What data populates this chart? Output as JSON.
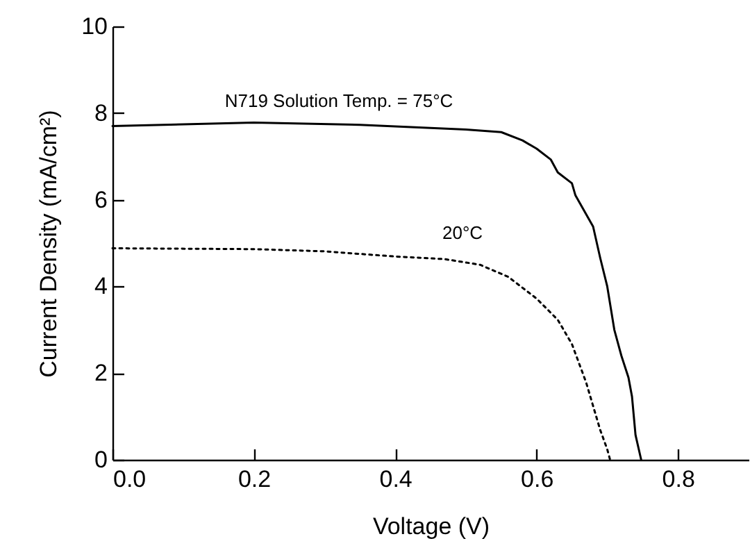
{
  "chart_data": {
    "type": "line",
    "xlabel": "Voltage (V)",
    "ylabel": "Current Density (mA/cm²)",
    "xlim": [
      0,
      0.9
    ],
    "xticks": [
      {
        "value": 0,
        "label": "0.0"
      },
      0.2,
      0.4,
      0.6,
      0.8
    ],
    "ylim": [
      0,
      10
    ],
    "yticks": [
      0,
      2,
      4,
      6,
      8,
      10
    ],
    "grid": false,
    "series": [
      {
        "color": "#000000",
        "line_style": "solid",
        "x": [
          0,
          0.2,
          0.35,
          0.5,
          0.55,
          0.58,
          0.6,
          0.62,
          0.63,
          0.65,
          0.655,
          0.68,
          0.69,
          0.7,
          0.71,
          0.72,
          0.73,
          0.735,
          0.74,
          0.748
        ],
        "values": [
          7.7,
          7.78,
          7.73,
          7.62,
          7.56,
          7.37,
          7.18,
          6.93,
          6.63,
          6.38,
          6.1,
          5.38,
          4.66,
          4.0,
          3.0,
          2.4,
          1.9,
          1.46,
          0.57,
          0
        ]
      },
      {
        "color": "#000000",
        "line_style": "dotted",
        "x": [
          0,
          0.2,
          0.3,
          0.4,
          0.47,
          0.52,
          0.56,
          0.6,
          0.63,
          0.65,
          0.67,
          0.68,
          0.69,
          0.7,
          0.704
        ],
        "values": [
          4.88,
          4.86,
          4.81,
          4.69,
          4.63,
          4.5,
          4.22,
          3.72,
          3.23,
          2.67,
          1.79,
          1.24,
          0.69,
          0.24,
          0
        ]
      }
    ],
    "annotations": [
      "N719 Solution Temp. = 75°C",
      "20°C"
    ]
  }
}
